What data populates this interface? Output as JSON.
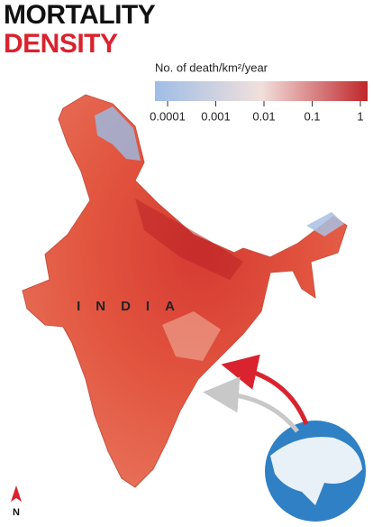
{
  "header": {
    "title_lines": [
      "MORTALITY",
      "DENSITY"
    ]
  },
  "legend": {
    "title": "No. of death/km²/year",
    "ticks": [
      0.0001,
      0.001,
      0.01,
      0.1,
      1
    ],
    "scale": "log",
    "colors": [
      "#9fbde6",
      "#f1e0dc",
      "#c0262b"
    ]
  },
  "map": {
    "label": "INDIA"
  },
  "compass": {
    "label": "N"
  }
}
